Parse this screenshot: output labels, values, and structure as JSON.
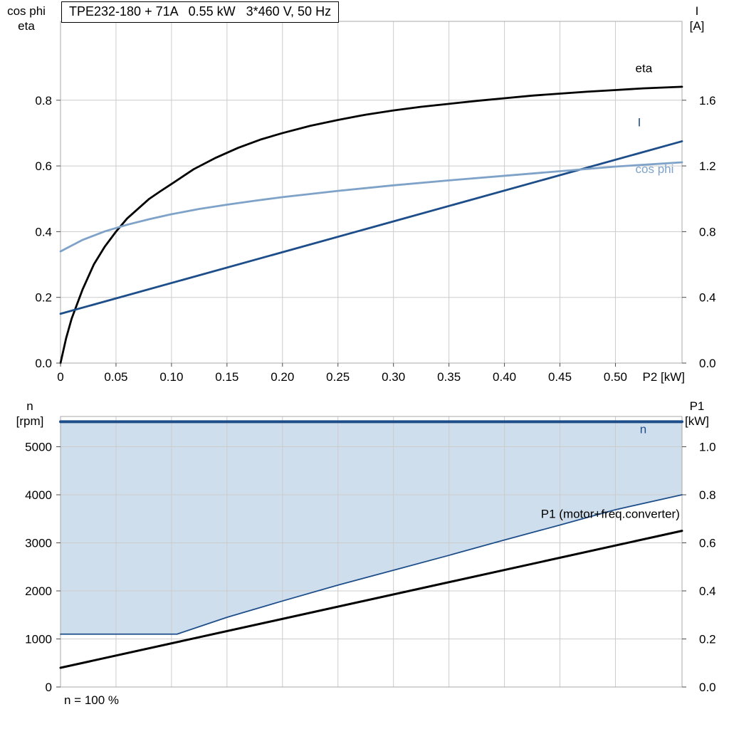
{
  "chart_data": [
    {
      "type": "line",
      "title": "TPE232-180 + 71A   0.55 kW   3*460 V, 50 Hz",
      "x": {
        "label": "P2 [kW]",
        "min": 0,
        "max": 0.56,
        "ticks": [
          {
            "v": 0,
            "label": "0"
          },
          {
            "v": 0.05,
            "label": "0.05"
          },
          {
            "v": 0.1,
            "label": "0.10"
          },
          {
            "v": 0.15,
            "label": "0.15"
          },
          {
            "v": 0.2,
            "label": "0.20"
          },
          {
            "v": 0.25,
            "label": "0.25"
          },
          {
            "v": 0.3,
            "label": "0.30"
          },
          {
            "v": 0.35,
            "label": "0.35"
          },
          {
            "v": 0.4,
            "label": "0.40"
          },
          {
            "v": 0.45,
            "label": "0.45"
          },
          {
            "v": 0.5,
            "label": "0.50"
          }
        ]
      },
      "y_left": {
        "title_lines": [
          "cos phi",
          "eta"
        ],
        "min": 0,
        "max": 1.04,
        "ticks": [
          {
            "v": 0,
            "label": "0.0"
          },
          {
            "v": 0.2,
            "label": "0.2"
          },
          {
            "v": 0.4,
            "label": "0.4"
          },
          {
            "v": 0.6,
            "label": "0.6"
          },
          {
            "v": 0.8,
            "label": "0.8"
          }
        ]
      },
      "y_right": {
        "title_lines": [
          "I",
          "[A]"
        ],
        "min": 0,
        "max": 2.08,
        "ticks": [
          {
            "v": 0,
            "label": "0.0"
          },
          {
            "v": 0.4,
            "label": "0.4"
          },
          {
            "v": 0.8,
            "label": "0.8"
          },
          {
            "v": 1.2,
            "label": "1.2"
          },
          {
            "v": 1.6,
            "label": "1.6"
          }
        ]
      },
      "colors": {
        "grid": "#cccccc",
        "frame": "#a9a9a9",
        "tick": "#4a4a4a"
      },
      "series": [
        {
          "name": "eta",
          "axis": "left",
          "color": "#000000",
          "width": 2.8,
          "points": [
            [
              0,
              0
            ],
            [
              0.005,
              0.075
            ],
            [
              0.01,
              0.135
            ],
            [
              0.02,
              0.225
            ],
            [
              0.03,
              0.3
            ],
            [
              0.04,
              0.355
            ],
            [
              0.05,
              0.4
            ],
            [
              0.06,
              0.44
            ],
            [
              0.07,
              0.47
            ],
            [
              0.08,
              0.5
            ],
            [
              0.09,
              0.523
            ],
            [
              0.1,
              0.545
            ],
            [
              0.12,
              0.59
            ],
            [
              0.14,
              0.625
            ],
            [
              0.16,
              0.655
            ],
            [
              0.18,
              0.68
            ],
            [
              0.2,
              0.7
            ],
            [
              0.225,
              0.722
            ],
            [
              0.25,
              0.74
            ],
            [
              0.275,
              0.756
            ],
            [
              0.3,
              0.769
            ],
            [
              0.325,
              0.78
            ],
            [
              0.35,
              0.789
            ],
            [
              0.375,
              0.798
            ],
            [
              0.4,
              0.806
            ],
            [
              0.425,
              0.814
            ],
            [
              0.45,
              0.82
            ],
            [
              0.475,
              0.826
            ],
            [
              0.5,
              0.831
            ],
            [
              0.525,
              0.836
            ],
            [
              0.56,
              0.841
            ]
          ]
        },
        {
          "name": "I",
          "axis": "right",
          "color": "#1d4e8a",
          "width": 2.8,
          "points": [
            [
              0,
              0.3
            ],
            [
              0.56,
              1.35
            ]
          ]
        },
        {
          "name": "cos phi",
          "axis": "left",
          "color": "#7fa3c8",
          "width": 2.8,
          "points": [
            [
              0,
              0.34
            ],
            [
              0.02,
              0.375
            ],
            [
              0.04,
              0.401
            ],
            [
              0.06,
              0.421
            ],
            [
              0.08,
              0.438
            ],
            [
              0.1,
              0.453
            ],
            [
              0.125,
              0.469
            ],
            [
              0.15,
              0.482
            ],
            [
              0.175,
              0.494
            ],
            [
              0.2,
              0.505
            ],
            [
              0.25,
              0.524
            ],
            [
              0.3,
              0.541
            ],
            [
              0.35,
              0.556
            ],
            [
              0.4,
              0.57
            ],
            [
              0.45,
              0.584
            ],
            [
              0.5,
              0.598
            ],
            [
              0.56,
              0.611
            ]
          ]
        }
      ],
      "annotations": [
        {
          "text": "eta",
          "x": 0.518,
          "y": 0.885,
          "axis": "left",
          "color": "#000000",
          "anchor": "start"
        },
        {
          "text": "I",
          "x": 0.52,
          "y": 0.72,
          "axis": "left",
          "color": "#1d4e8a",
          "anchor": "start"
        },
        {
          "text": "cos phi",
          "x": 0.518,
          "y": 0.578,
          "axis": "left",
          "color": "#7fa3c8",
          "anchor": "start"
        }
      ]
    },
    {
      "type": "line",
      "x": {
        "label": "",
        "min": 0,
        "max": 0.56,
        "ticks": [
          {
            "v": 0
          },
          {
            "v": 0.05
          },
          {
            "v": 0.1
          },
          {
            "v": 0.15
          },
          {
            "v": 0.2
          },
          {
            "v": 0.25
          },
          {
            "v": 0.3
          },
          {
            "v": 0.35
          },
          {
            "v": 0.4
          },
          {
            "v": 0.45
          },
          {
            "v": 0.5
          }
        ]
      },
      "y_left": {
        "title_lines": [
          "n",
          "[rpm]"
        ],
        "min": 0,
        "max": 5630,
        "ticks": [
          {
            "v": 0,
            "label": "0"
          },
          {
            "v": 1000,
            "label": "1000"
          },
          {
            "v": 2000,
            "label": "2000"
          },
          {
            "v": 3000,
            "label": "3000"
          },
          {
            "v": 4000,
            "label": "4000"
          },
          {
            "v": 5000,
            "label": "5000"
          }
        ]
      },
      "y_right": {
        "title_lines": [
          "P1",
          "[kW]"
        ],
        "min": 0,
        "max": 1.126,
        "ticks": [
          {
            "v": 0,
            "label": "0.0"
          },
          {
            "v": 0.2,
            "label": "0.2"
          },
          {
            "v": 0.4,
            "label": "0.4"
          },
          {
            "v": 0.6,
            "label": "0.6"
          },
          {
            "v": 0.8,
            "label": "0.8"
          },
          {
            "v": 1.0,
            "label": "1.0"
          }
        ]
      },
      "colors": {
        "grid": "#cccccc",
        "frame": "#a9a9a9",
        "tick": "#4a4a4a"
      },
      "fill": {
        "upper": "n",
        "lower": "n min",
        "color": "#cfdeed"
      },
      "series": [
        {
          "name": "n min",
          "axis": "left",
          "color": "#1d4e8a",
          "width": 1.8,
          "points": [
            [
              0,
              1100
            ],
            [
              0.105,
              1100
            ],
            [
              0.15,
              1450
            ],
            [
              0.2,
              1790
            ],
            [
              0.25,
              2120
            ],
            [
              0.3,
              2430
            ],
            [
              0.35,
              2740
            ],
            [
              0.4,
              3060
            ],
            [
              0.45,
              3370
            ],
            [
              0.5,
              3690
            ],
            [
              0.56,
              4000
            ]
          ]
        },
        {
          "name": "n",
          "axis": "left",
          "color": "#1d4e8a",
          "width": 4,
          "points": [
            [
              0,
              5520
            ],
            [
              0.56,
              5520
            ]
          ]
        },
        {
          "name": "P1 (motor+freq.converter)",
          "axis": "right",
          "color": "#000000",
          "width": 3,
          "points": [
            [
              0,
              0.08
            ],
            [
              0.56,
              0.65
            ]
          ]
        }
      ],
      "annotations": [
        {
          "text": "n",
          "x": 0.522,
          "y": 5280,
          "axis": "left",
          "color": "#1d4e8a",
          "anchor": "start"
        },
        {
          "text": "P1 (motor+freq.converter)",
          "x": 0.558,
          "y": 3520,
          "axis": "left",
          "color": "#000000",
          "anchor": "end"
        }
      ],
      "footnote": "n = 100 %"
    }
  ]
}
